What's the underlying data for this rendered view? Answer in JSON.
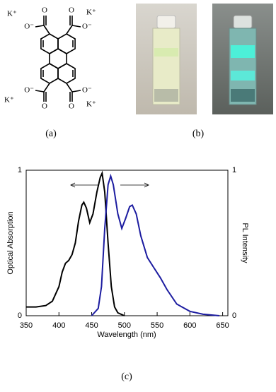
{
  "structure": {
    "cation": "K⁺",
    "oxygen": "O",
    "anion_oxygen": "O⁻"
  },
  "panel_labels": [
    "(a)",
    "(b)",
    "(c)"
  ],
  "chart_data": {
    "type": "line",
    "xlabel": "Wavelength (nm)",
    "ylabel": "Optical Absorption",
    "y2label": "PL Intensity",
    "xlim": [
      350,
      658
    ],
    "xticks": [
      350,
      400,
      450,
      500,
      550,
      600,
      650
    ],
    "ylim": [
      0,
      1
    ],
    "yticks": [
      0,
      1
    ],
    "y2lim": [
      0,
      1
    ],
    "y2ticks": [
      0,
      1
    ],
    "series": [
      {
        "color": "#000000",
        "x": [
          350,
          365,
          380,
          390,
          400,
          405,
          410,
          415,
          420,
          425,
          430,
          435,
          438,
          442,
          447,
          452,
          458,
          463,
          466,
          470,
          475,
          480,
          485,
          490,
          500
        ],
        "values": [
          0.06,
          0.06,
          0.07,
          0.1,
          0.2,
          0.3,
          0.36,
          0.38,
          0.42,
          0.5,
          0.65,
          0.76,
          0.78,
          0.74,
          0.64,
          0.7,
          0.85,
          0.95,
          0.98,
          0.85,
          0.5,
          0.2,
          0.06,
          0.02,
          0
        ]
      },
      {
        "color": "#1c1ca0",
        "axis": "y2",
        "x": [
          450,
          460,
          465,
          470,
          475,
          479,
          483,
          490,
          496,
          502,
          508,
          512,
          518,
          525,
          535,
          545,
          555,
          565,
          580,
          600,
          620,
          645
        ],
        "values": [
          0,
          0.05,
          0.2,
          0.6,
          0.9,
          0.96,
          0.9,
          0.7,
          0.6,
          0.67,
          0.75,
          0.76,
          0.7,
          0.55,
          0.4,
          0.33,
          0.26,
          0.18,
          0.08,
          0.03,
          0.01,
          0
        ]
      }
    ]
  }
}
